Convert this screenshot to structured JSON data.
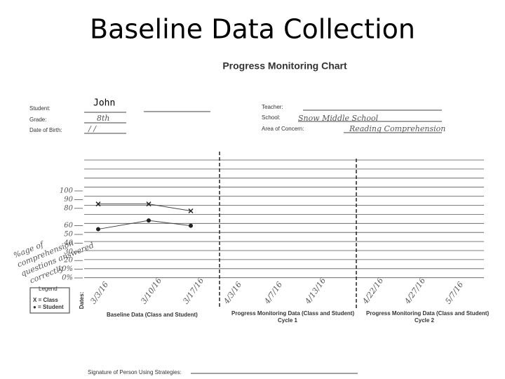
{
  "title": "Baseline Data Collection",
  "form_title": "Progress Monitoring Chart",
  "fields": {
    "student": {
      "label": "Student:",
      "value": "John"
    },
    "grade": {
      "label": "Grade:",
      "value": "8th"
    },
    "dob": {
      "label": "Date of Birth:",
      "value": "/ /"
    },
    "teacher": {
      "label": "Teacher:"
    },
    "school": {
      "label": "School:",
      "value": "Snow Middle School"
    },
    "area": {
      "label": "Area of Concern:",
      "value": "Reading Comprehension"
    }
  },
  "chart": {
    "y_label_lines": [
      "%age of",
      "comprehension",
      "questions answered",
      "correctly"
    ],
    "dates_label": "Dates:",
    "ylim": [
      0,
      100
    ],
    "yticks": [
      100,
      90,
      80,
      60,
      50,
      40,
      30,
      20,
      {
        "value": 10,
        "label": "10%"
      },
      {
        "value": 0,
        "label": "0%"
      }
    ],
    "categories": [
      "3/3/16",
      "3/10/16",
      "3/17/16",
      "4/3/16",
      "4/7/16",
      "4/13/16",
      "4/22/16",
      "4/27/16",
      "5/7/16"
    ],
    "series": [
      {
        "marker": "x",
        "values": [
          85,
          85,
          77,
          null,
          null,
          null,
          null,
          null,
          null
        ]
      },
      {
        "marker": "dot",
        "values": [
          56,
          66,
          60,
          null,
          null,
          null,
          null,
          null,
          null
        ]
      }
    ]
  },
  "legend": {
    "title": "Legend",
    "items": [
      "X = Class",
      "● = Student"
    ]
  },
  "sections": [
    {
      "label": "Baseline Data (Class and Student)"
    },
    {
      "label": "Progress Monitoring Data (Class and Student)",
      "cycle": "Cycle 1"
    },
    {
      "label": "Progress Monitoring Data (Class and Student)",
      "cycle": "Cycle 2"
    }
  ],
  "signature": "Signature of Person Using Strategies:"
}
